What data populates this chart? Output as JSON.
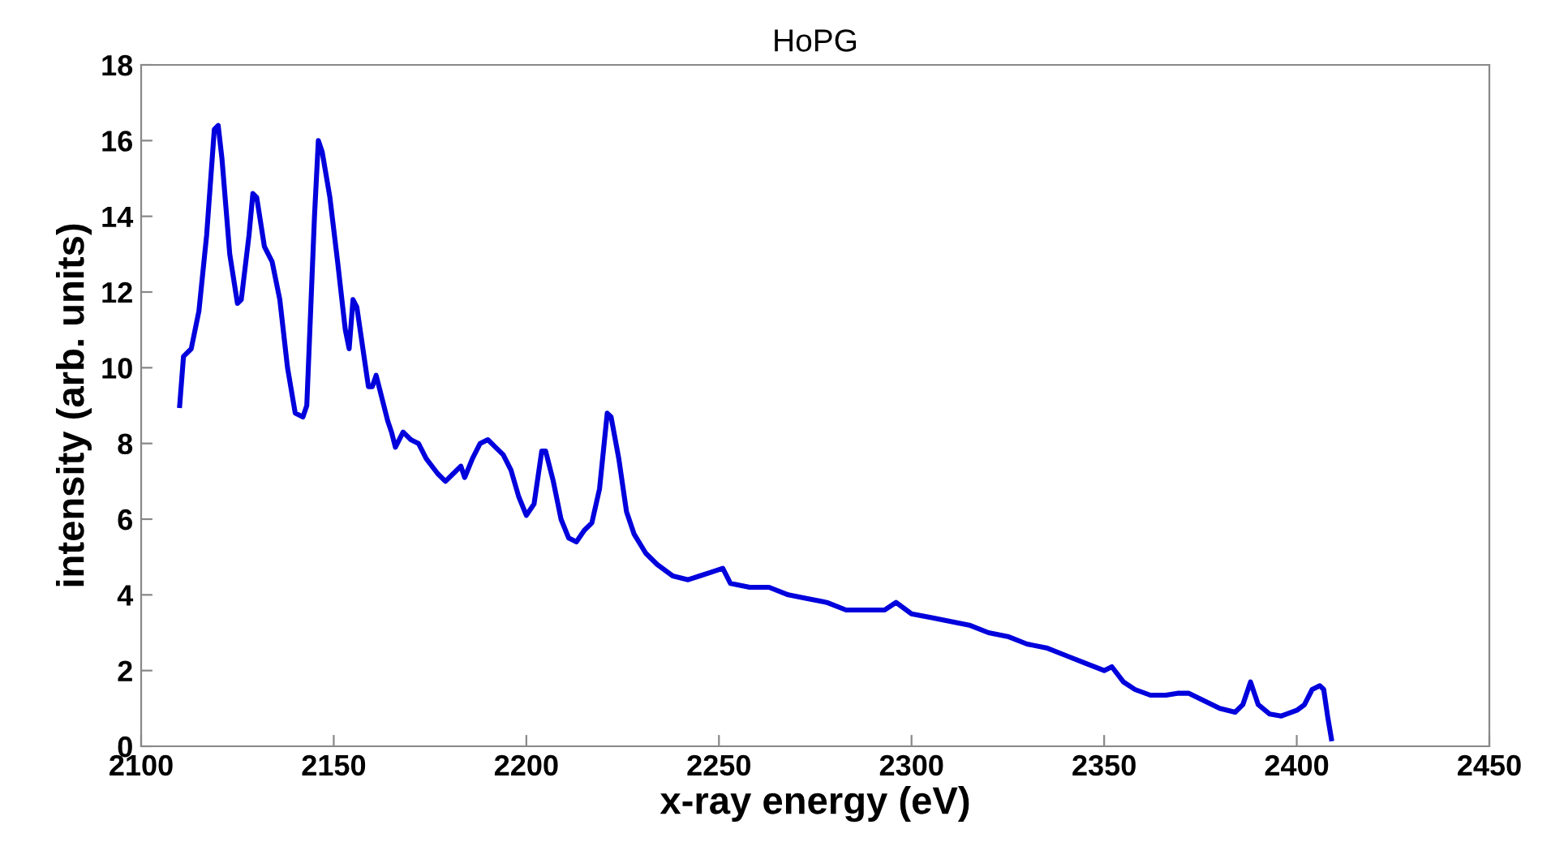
{
  "chart_data": {
    "type": "line",
    "title": "HoPG",
    "xlabel": "x-ray energy (eV)",
    "ylabel": "intensity (arb. units)",
    "xlim": [
      2100,
      2450
    ],
    "xticks": [
      2100,
      2150,
      2200,
      2250,
      2300,
      2350,
      2400,
      2450
    ],
    "ylim": [
      0,
      18
    ],
    "yticks": [
      0,
      2,
      4,
      6,
      8,
      10,
      12,
      14,
      16,
      18
    ],
    "grid": false,
    "legend": false,
    "series": [
      {
        "color": "#0000dd",
        "x": [
          2110,
          2111,
          2113,
          2115,
          2117,
          2119,
          2120,
          2121,
          2123,
          2125,
          2126,
          2128,
          2129,
          2130,
          2132,
          2134,
          2136,
          2138,
          2140,
          2142,
          2143,
          2144,
          2145,
          2146,
          2147,
          2149,
          2151,
          2153,
          2154,
          2155,
          2156,
          2158,
          2159,
          2160,
          2161,
          2162,
          2164,
          2165,
          2166,
          2168,
          2170,
          2172,
          2174,
          2177,
          2179,
          2181,
          2183,
          2184,
          2186,
          2188,
          2190,
          2192,
          2194,
          2196,
          2198,
          2200,
          2202,
          2204,
          2205,
          2207,
          2209,
          2211,
          2213,
          2215,
          2217,
          2219,
          2221,
          2222,
          2224,
          2226,
          2228,
          2231,
          2234,
          2238,
          2242,
          2245,
          2248,
          2251,
          2253,
          2258,
          2263,
          2268,
          2273,
          2278,
          2283,
          2288,
          2293,
          2296,
          2300,
          2305,
          2310,
          2315,
          2320,
          2325,
          2330,
          2335,
          2340,
          2345,
          2350,
          2352,
          2355,
          2358,
          2362,
          2366,
          2369,
          2372,
          2376,
          2380,
          2384,
          2386,
          2388,
          2390,
          2393,
          2396,
          2400,
          2402,
          2404,
          2406,
          2407,
          2408,
          2409
        ],
        "values": [
          9.0,
          10.3,
          10.5,
          11.5,
          13.5,
          16.3,
          16.4,
          15.5,
          13,
          11.7,
          11.8,
          13.5,
          14.6,
          14.5,
          13.2,
          12.8,
          11.8,
          10,
          8.8,
          8.7,
          9,
          11.5,
          14,
          16,
          15.7,
          14.5,
          12.8,
          11,
          10.5,
          11.8,
          11.6,
          10.2,
          9.5,
          9.5,
          9.8,
          9.4,
          8.6,
          8.3,
          7.9,
          8.3,
          8.1,
          8.0,
          7.6,
          7.2,
          7.0,
          7.2,
          7.4,
          7.1,
          7.6,
          8.0,
          8.1,
          7.9,
          7.7,
          7.3,
          6.6,
          6.1,
          6.4,
          7.8,
          7.8,
          7.0,
          6.0,
          5.5,
          5.4,
          5.7,
          5.9,
          6.8,
          8.8,
          8.7,
          7.6,
          6.2,
          5.6,
          5.1,
          4.8,
          4.5,
          4.4,
          4.5,
          4.6,
          4.7,
          4.3,
          4.2,
          4.2,
          4.0,
          3.9,
          3.8,
          3.6,
          3.6,
          3.6,
          3.8,
          3.5,
          3.4,
          3.3,
          3.2,
          3.0,
          2.9,
          2.7,
          2.6,
          2.4,
          2.2,
          2.0,
          2.1,
          1.7,
          1.5,
          1.35,
          1.35,
          1.4,
          1.4,
          1.2,
          1.0,
          0.9,
          1.1,
          1.7,
          1.1,
          0.85,
          0.8,
          0.95,
          1.1,
          1.5,
          1.6,
          1.5,
          0.8,
          0.2
        ]
      }
    ]
  }
}
